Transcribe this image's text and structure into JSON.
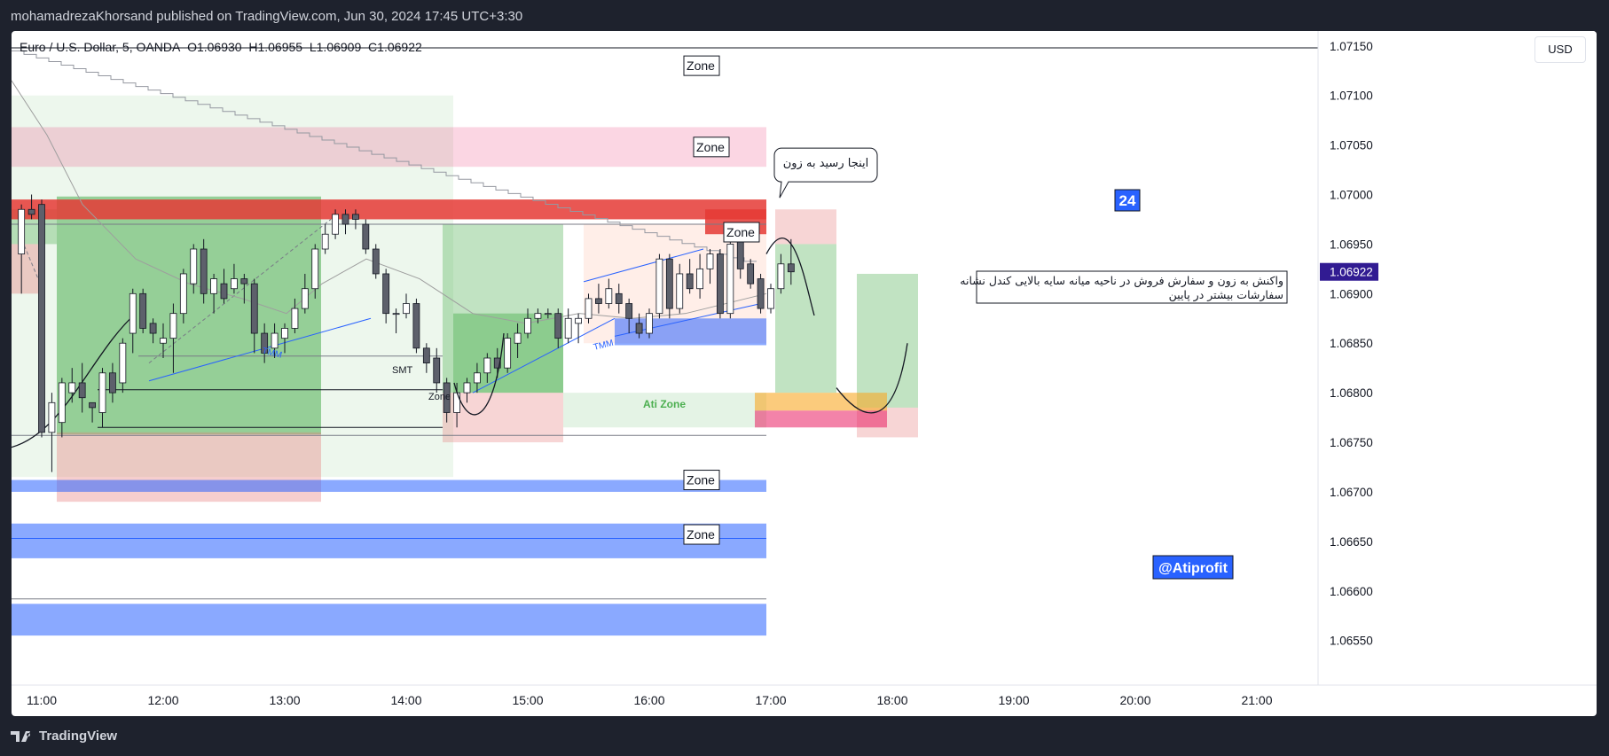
{
  "header": {
    "published": "mohamadrezaKhorsand published on TradingView.com, Jun 30, 2024 17:45 UTC+3:30"
  },
  "legend": {
    "symbol": "Euro / U.S. Dollar, 5, OANDA",
    "open": "O1.06930",
    "high": "H1.06955",
    "low": "L1.06909",
    "close": "C1.06922"
  },
  "currency_button": "USD",
  "footer": {
    "brand": "TradingView",
    "logo_icon": "tradingview-logo-icon"
  },
  "colors": {
    "bull": "#ffffff",
    "bear": "#5d606b",
    "wick": "#131722",
    "last_price_bg": "#311b92",
    "blue_zone": "#2962ff",
    "red_zone": "#e53935",
    "green_box": "#4caf50"
  },
  "chart_data": {
    "type": "candlestick",
    "timeframe": "5",
    "x_ticks": [
      "11:00",
      "12:00",
      "13:00",
      "14:00",
      "15:00",
      "16:00",
      "17:00",
      "18:00",
      "19:00",
      "20:00",
      "21:00"
    ],
    "y_ticks": [
      "1.07150",
      "1.07100",
      "1.07050",
      "1.07000",
      "1.06950",
      "1.06900",
      "1.06850",
      "1.06800",
      "1.06750",
      "1.06700",
      "1.06650",
      "1.06600",
      "1.06550"
    ],
    "ylim": [
      1.06505,
      1.07165
    ],
    "last_price": "1.06922",
    "candles": [
      {
        "t": "10:50",
        "o": 1.0694,
        "h": 1.0699,
        "l": 1.069,
        "c": 1.06985
      },
      {
        "t": "10:55",
        "o": 1.06985,
        "h": 1.07,
        "l": 1.06975,
        "c": 1.0698
      },
      {
        "t": "11:00",
        "o": 1.0699,
        "h": 1.06995,
        "l": 1.06755,
        "c": 1.0676
      },
      {
        "t": "11:05",
        "o": 1.0676,
        "h": 1.068,
        "l": 1.0672,
        "c": 1.0679
      },
      {
        "t": "11:10",
        "o": 1.0677,
        "h": 1.06815,
        "l": 1.06755,
        "c": 1.0681
      },
      {
        "t": "11:15",
        "o": 1.068,
        "h": 1.06825,
        "l": 1.0679,
        "c": 1.0681
      },
      {
        "t": "11:20",
        "o": 1.0681,
        "h": 1.0683,
        "l": 1.0678,
        "c": 1.06795
      },
      {
        "t": "11:25",
        "o": 1.0679,
        "h": 1.0679,
        "l": 1.0677,
        "c": 1.06785
      },
      {
        "t": "11:30",
        "o": 1.0678,
        "h": 1.06825,
        "l": 1.06765,
        "c": 1.0682
      },
      {
        "t": "11:35",
        "o": 1.0682,
        "h": 1.0683,
        "l": 1.0679,
        "c": 1.068
      },
      {
        "t": "11:40",
        "o": 1.0681,
        "h": 1.06855,
        "l": 1.068,
        "c": 1.0685
      },
      {
        "t": "11:45",
        "o": 1.0686,
        "h": 1.06905,
        "l": 1.0684,
        "c": 1.069
      },
      {
        "t": "11:50",
        "o": 1.069,
        "h": 1.06905,
        "l": 1.0686,
        "c": 1.06865
      },
      {
        "t": "11:55",
        "o": 1.0687,
        "h": 1.06875,
        "l": 1.0685,
        "c": 1.0686
      },
      {
        "t": "12:00",
        "o": 1.0685,
        "h": 1.0687,
        "l": 1.06835,
        "c": 1.06855
      },
      {
        "t": "12:05",
        "o": 1.06855,
        "h": 1.0689,
        "l": 1.0682,
        "c": 1.0688
      },
      {
        "t": "12:10",
        "o": 1.0688,
        "h": 1.06925,
        "l": 1.0687,
        "c": 1.0692
      },
      {
        "t": "12:15",
        "o": 1.0691,
        "h": 1.0695,
        "l": 1.069,
        "c": 1.06945
      },
      {
        "t": "12:20",
        "o": 1.06945,
        "h": 1.06955,
        "l": 1.0689,
        "c": 1.069
      },
      {
        "t": "12:25",
        "o": 1.069,
        "h": 1.0692,
        "l": 1.0688,
        "c": 1.06915
      },
      {
        "t": "12:30",
        "o": 1.0691,
        "h": 1.06925,
        "l": 1.0689,
        "c": 1.06895
      },
      {
        "t": "12:35",
        "o": 1.06905,
        "h": 1.0693,
        "l": 1.069,
        "c": 1.06915
      },
      {
        "t": "12:40",
        "o": 1.06915,
        "h": 1.0692,
        "l": 1.0689,
        "c": 1.0691
      },
      {
        "t": "12:45",
        "o": 1.0691,
        "h": 1.06915,
        "l": 1.0684,
        "c": 1.0686
      },
      {
        "t": "12:50",
        "o": 1.0686,
        "h": 1.0687,
        "l": 1.0683,
        "c": 1.0684
      },
      {
        "t": "12:55",
        "o": 1.06845,
        "h": 1.0687,
        "l": 1.06835,
        "c": 1.0686
      },
      {
        "t": "13:00",
        "o": 1.06855,
        "h": 1.0687,
        "l": 1.0684,
        "c": 1.06865
      },
      {
        "t": "13:05",
        "o": 1.06865,
        "h": 1.06895,
        "l": 1.0686,
        "c": 1.06885
      },
      {
        "t": "13:10",
        "o": 1.06885,
        "h": 1.0692,
        "l": 1.0688,
        "c": 1.06905
      },
      {
        "t": "13:15",
        "o": 1.06905,
        "h": 1.0695,
        "l": 1.06895,
        "c": 1.06945
      },
      {
        "t": "13:20",
        "o": 1.06945,
        "h": 1.0697,
        "l": 1.0694,
        "c": 1.0696
      },
      {
        "t": "13:25",
        "o": 1.0696,
        "h": 1.06985,
        "l": 1.06955,
        "c": 1.0698
      },
      {
        "t": "13:30",
        "o": 1.0698,
        "h": 1.06985,
        "l": 1.0696,
        "c": 1.0697
      },
      {
        "t": "13:35",
        "o": 1.0698,
        "h": 1.06985,
        "l": 1.06965,
        "c": 1.06975
      },
      {
        "t": "13:40",
        "o": 1.0697,
        "h": 1.06975,
        "l": 1.0694,
        "c": 1.06945
      },
      {
        "t": "13:45",
        "o": 1.06945,
        "h": 1.0695,
        "l": 1.06915,
        "c": 1.0692
      },
      {
        "t": "13:50",
        "o": 1.0692,
        "h": 1.06925,
        "l": 1.0687,
        "c": 1.0688
      },
      {
        "t": "13:55",
        "o": 1.0688,
        "h": 1.06885,
        "l": 1.0686,
        "c": 1.0688
      },
      {
        "t": "14:00",
        "o": 1.0688,
        "h": 1.069,
        "l": 1.06875,
        "c": 1.0689
      },
      {
        "t": "14:05",
        "o": 1.0689,
        "h": 1.06895,
        "l": 1.0684,
        "c": 1.06845
      },
      {
        "t": "14:10",
        "o": 1.06845,
        "h": 1.0685,
        "l": 1.0682,
        "c": 1.0683
      },
      {
        "t": "14:15",
        "o": 1.06835,
        "h": 1.06845,
        "l": 1.068,
        "c": 1.0681
      },
      {
        "t": "14:20",
        "o": 1.0681,
        "h": 1.06815,
        "l": 1.0677,
        "c": 1.0678
      },
      {
        "t": "14:25",
        "o": 1.0678,
        "h": 1.0681,
        "l": 1.06765,
        "c": 1.068
      },
      {
        "t": "14:30",
        "o": 1.068,
        "h": 1.06815,
        "l": 1.0679,
        "c": 1.0681
      },
      {
        "t": "14:35",
        "o": 1.0681,
        "h": 1.0683,
        "l": 1.068,
        "c": 1.0682
      },
      {
        "t": "14:40",
        "o": 1.0682,
        "h": 1.0684,
        "l": 1.0681,
        "c": 1.06835
      },
      {
        "t": "14:45",
        "o": 1.06835,
        "h": 1.06845,
        "l": 1.06815,
        "c": 1.06825
      },
      {
        "t": "14:50",
        "o": 1.06825,
        "h": 1.0686,
        "l": 1.0682,
        "c": 1.06855
      },
      {
        "t": "14:55",
        "o": 1.0685,
        "h": 1.0687,
        "l": 1.06835,
        "c": 1.0686
      },
      {
        "t": "15:00",
        "o": 1.0686,
        "h": 1.06885,
        "l": 1.06855,
        "c": 1.06875
      },
      {
        "t": "15:05",
        "o": 1.06875,
        "h": 1.06885,
        "l": 1.0687,
        "c": 1.0688
      },
      {
        "t": "15:10",
        "o": 1.0688,
        "h": 1.06885,
        "l": 1.06875,
        "c": 1.0688
      },
      {
        "t": "15:15",
        "o": 1.0688,
        "h": 1.06885,
        "l": 1.06845,
        "c": 1.06855
      },
      {
        "t": "15:20",
        "o": 1.06855,
        "h": 1.06885,
        "l": 1.0685,
        "c": 1.06875
      },
      {
        "t": "15:25",
        "o": 1.0687,
        "h": 1.0688,
        "l": 1.0685,
        "c": 1.06875
      },
      {
        "t": "15:30",
        "o": 1.06875,
        "h": 1.069,
        "l": 1.0687,
        "c": 1.06895
      },
      {
        "t": "15:35",
        "o": 1.06895,
        "h": 1.0691,
        "l": 1.0688,
        "c": 1.0689
      },
      {
        "t": "15:40",
        "o": 1.0689,
        "h": 1.06915,
        "l": 1.06885,
        "c": 1.06905
      },
      {
        "t": "15:45",
        "o": 1.069,
        "h": 1.0691,
        "l": 1.0688,
        "c": 1.0689
      },
      {
        "t": "15:50",
        "o": 1.0689,
        "h": 1.06895,
        "l": 1.0686,
        "c": 1.06875
      },
      {
        "t": "15:55",
        "o": 1.0687,
        "h": 1.0688,
        "l": 1.06855,
        "c": 1.0686
      },
      {
        "t": "16:00",
        "o": 1.0686,
        "h": 1.06885,
        "l": 1.06855,
        "c": 1.0688
      },
      {
        "t": "16:05",
        "o": 1.0688,
        "h": 1.0694,
        "l": 1.06875,
        "c": 1.06935
      },
      {
        "t": "16:10",
        "o": 1.06935,
        "h": 1.0694,
        "l": 1.06875,
        "c": 1.06885
      },
      {
        "t": "16:15",
        "o": 1.06885,
        "h": 1.0693,
        "l": 1.0688,
        "c": 1.0692
      },
      {
        "t": "16:20",
        "o": 1.0692,
        "h": 1.06935,
        "l": 1.069,
        "c": 1.06905
      },
      {
        "t": "16:25",
        "o": 1.06905,
        "h": 1.0694,
        "l": 1.06895,
        "c": 1.06925
      },
      {
        "t": "16:30",
        "o": 1.06925,
        "h": 1.06945,
        "l": 1.0691,
        "c": 1.0694
      },
      {
        "t": "16:35",
        "o": 1.0694,
        "h": 1.06945,
        "l": 1.06875,
        "c": 1.0688
      },
      {
        "t": "16:40",
        "o": 1.0688,
        "h": 1.0696,
        "l": 1.06875,
        "c": 1.0695
      },
      {
        "t": "16:45",
        "o": 1.06955,
        "h": 1.0696,
        "l": 1.06915,
        "c": 1.06925
      },
      {
        "t": "16:50",
        "o": 1.0693,
        "h": 1.06935,
        "l": 1.06905,
        "c": 1.0691
      },
      {
        "t": "16:55",
        "o": 1.06915,
        "h": 1.0692,
        "l": 1.0688,
        "c": 1.06885
      },
      {
        "t": "17:00",
        "o": 1.06885,
        "h": 1.0691,
        "l": 1.0688,
        "c": 1.06905
      },
      {
        "t": "17:05",
        "o": 1.06905,
        "h": 1.0694,
        "l": 1.069,
        "c": 1.0693
      },
      {
        "t": "17:10",
        "o": 1.0693,
        "h": 1.06955,
        "l": 1.06909,
        "c": 1.06922
      }
    ],
    "zone_labels": [
      "Zone",
      "Zone",
      "Zone",
      "Zone",
      "Zone",
      "Zone"
    ],
    "ati_zone_label": "Ati Zone",
    "tmm_labels": [
      "TMM",
      "TMM"
    ],
    "smt_label": "SMT",
    "annotations": {
      "note_top": "اینجا رسید به زون",
      "note_right_line1": "واکنش به زون و سفارش فروش در ناحیه میانه سایه بالایی کندل نشانه",
      "note_right_line2": "سفارشات بیشتر در پایین"
    },
    "badge_24": "24",
    "watermark": "@Atiprofit"
  }
}
